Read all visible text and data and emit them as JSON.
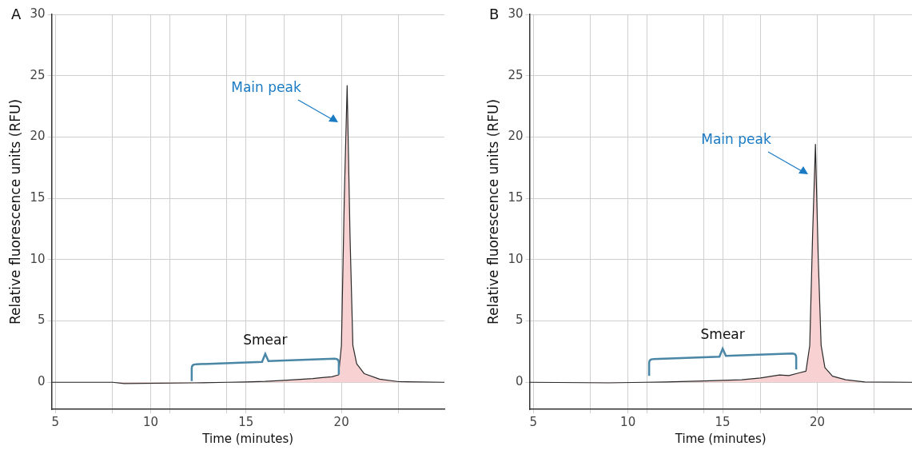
{
  "chart_data": [
    {
      "type": "area",
      "title": "A",
      "xlabel": "Time (minutes)",
      "ylabel": "Relative fluorescence units (RFU)",
      "x": [
        4.8,
        8,
        8.6,
        12.3,
        14,
        15,
        16,
        17,
        18,
        18.5,
        19,
        19.5,
        19.85,
        20.0,
        20.15,
        20.3,
        20.45,
        20.6,
        20.8,
        21.2,
        22,
        23,
        25.4
      ],
      "series": [
        {
          "color": "#f8d2d2",
          "values": [
            0,
            0,
            -0.1,
            -0.05,
            0,
            0.03,
            0.07,
            0.15,
            0.25,
            0.3,
            0.38,
            0.45,
            0.6,
            3,
            15,
            24.2,
            12,
            3,
            1.5,
            0.7,
            0.25,
            0.05,
            0
          ]
        }
      ],
      "xlim": [
        4.8,
        25.4
      ],
      "xticks": [
        5,
        {
          "value": 8,
          "label": null
        },
        10,
        {
          "value": 11,
          "label": null
        },
        {
          "value": 14,
          "label": null
        },
        15,
        {
          "value": 17,
          "label": null
        },
        20,
        {
          "value": 23,
          "label": null
        }
      ],
      "ylim": [
        -2.2,
        30
      ],
      "yticks": [
        0,
        5,
        10,
        15,
        20,
        25,
        30
      ],
      "grid": true,
      "legend": false,
      "annotations": [
        "Main peak",
        "Smear"
      ]
    },
    {
      "type": "area",
      "title": "B",
      "xlabel": "Time (minutes)",
      "ylabel": "Relative fluorescence units (RFU)",
      "x": [
        4.8,
        9,
        10.9,
        12,
        14,
        16,
        17,
        18,
        18.5,
        19,
        19.4,
        19.6,
        19.75,
        19.9,
        20.05,
        20.2,
        20.4,
        20.8,
        21.5,
        22.5,
        25.0
      ],
      "series": [
        {
          "color": "#f8d2d2",
          "values": [
            0,
            -0.05,
            0,
            0.02,
            0.1,
            0.2,
            0.35,
            0.6,
            0.55,
            0.75,
            0.9,
            3,
            12,
            19.4,
            10,
            3,
            1.2,
            0.5,
            0.2,
            0.03,
            0
          ]
        }
      ],
      "xlim": [
        4.8,
        25.0
      ],
      "xticks": [
        5,
        {
          "value": 8,
          "label": null
        },
        10,
        {
          "value": 11,
          "label": null
        },
        {
          "value": 14,
          "label": null
        },
        15,
        {
          "value": 17,
          "label": null
        },
        20,
        {
          "value": 23,
          "label": null
        }
      ],
      "ylim": [
        -2.2,
        30
      ],
      "yticks": [
        0,
        5,
        10,
        15,
        20,
        25,
        30
      ],
      "grid": true,
      "legend": false,
      "annotations": [
        "Main peak",
        "Smear"
      ]
    }
  ]
}
